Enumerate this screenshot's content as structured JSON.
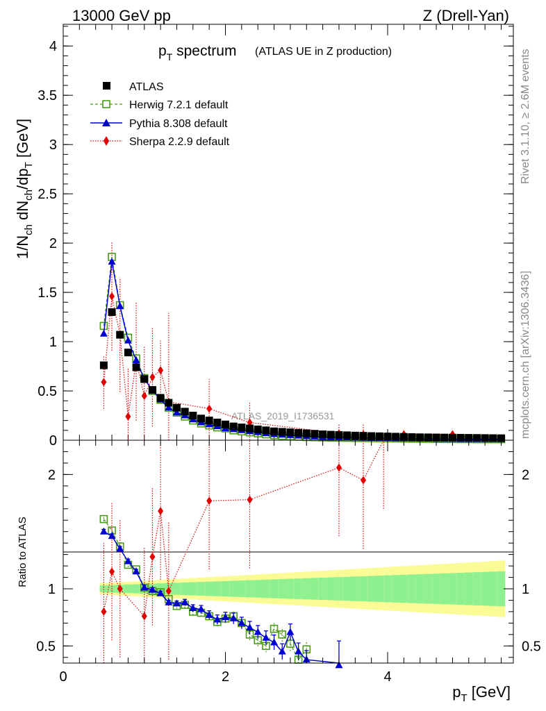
{
  "header": {
    "left": "13000 GeV pp",
    "right": "Z (Drell-Yan)"
  },
  "side_labels": {
    "rivet": "Rivet 3.1.10, ≥ 2.6M events",
    "mcplots": "mcplots.cern.ch [arXiv:1306.3436]"
  },
  "chart_data": [
    {
      "type": "scatter",
      "title_main": "p",
      "title_sub": "T",
      "title_rest": " spectrum",
      "title_extra": "(ATLAS UE in Z production)",
      "watermark": "ATLAS_2019_I1736531",
      "xlabel": "p",
      "xlabel_sub": "T",
      "xlabel_unit": " [GeV]",
      "ylabel": "1/N_ch dN_ch/dp_T [GeV]",
      "xlim": [
        0,
        5.55
      ],
      "ylim": [
        0,
        4.22
      ],
      "yticks": [
        "0",
        "0.5",
        "1",
        "1.5",
        "2",
        "2.5",
        "3",
        "3.5",
        "4"
      ],
      "xticks": [
        "0",
        "2",
        "4"
      ],
      "legend": {
        "position": "top-left",
        "entries": [
          "ATLAS",
          "Herwig 7.2.1 default",
          "Pythia 8.308 default",
          "Sherpa 2.2.9 default"
        ]
      },
      "series": [
        {
          "name": "ATLAS",
          "color": "#000000",
          "marker": "filled-square",
          "x": [
            0.5,
            0.6,
            0.7,
            0.8,
            0.9,
            1.0,
            1.1,
            1.2,
            1.3,
            1.4,
            1.5,
            1.6,
            1.7,
            1.8,
            1.9,
            2.0,
            2.1,
            2.2,
            2.3,
            2.4,
            2.5,
            2.6,
            2.7,
            2.8,
            2.9,
            3.0,
            3.1,
            3.2,
            3.3,
            3.4,
            3.5,
            3.6,
            3.7,
            3.8,
            3.9,
            4.0,
            4.1,
            4.2,
            4.3,
            4.4,
            4.5,
            4.6,
            4.7,
            4.8,
            4.9,
            5.0,
            5.1,
            5.2,
            5.3,
            5.4
          ],
          "y": [
            0.76,
            1.3,
            1.07,
            0.89,
            0.74,
            0.62,
            0.51,
            0.43,
            0.38,
            0.33,
            0.29,
            0.25,
            0.22,
            0.2,
            0.18,
            0.16,
            0.14,
            0.13,
            0.12,
            0.11,
            0.1,
            0.09,
            0.085,
            0.08,
            0.075,
            0.07,
            0.065,
            0.06,
            0.056,
            0.053,
            0.05,
            0.047,
            0.045,
            0.042,
            0.04,
            0.038,
            0.036,
            0.034,
            0.032,
            0.03,
            0.029,
            0.028,
            0.027,
            0.026,
            0.025,
            0.024,
            0.023,
            0.022,
            0.021,
            0.02
          ]
        },
        {
          "name": "Herwig 7.2.1 default",
          "color": "#4b9b1a",
          "marker": "open-square",
          "line": "dashed",
          "x": [
            0.5,
            0.6,
            0.7,
            0.8,
            0.9,
            1.0,
            1.1,
            1.2,
            1.3,
            1.4,
            1.5,
            1.6,
            1.7,
            1.8,
            1.9,
            2.0,
            2.1,
            2.2,
            2.3,
            2.4,
            2.5,
            2.6,
            2.7,
            2.8,
            2.9,
            3.0,
            3.1,
            3.2,
            3.3,
            3.4,
            3.5,
            3.6,
            3.7,
            3.8,
            3.9,
            4.0,
            4.1,
            4.2,
            4.3,
            4.4,
            4.5,
            4.6,
            4.7,
            4.8,
            4.9,
            5.0,
            5.1,
            5.2,
            5.3,
            5.4
          ],
          "y": [
            1.16,
            1.86,
            1.37,
            1.04,
            0.83,
            0.63,
            0.5,
            0.41,
            0.33,
            0.28,
            0.24,
            0.2,
            0.17,
            0.15,
            0.13,
            0.12,
            0.1,
            0.09,
            0.08,
            0.07,
            0.06,
            0.05,
            0.045,
            0.04,
            0.036,
            0.032,
            0.03,
            0.028,
            0.026,
            0.025,
            0.024,
            0.023,
            0.022,
            0.021,
            0.02,
            0.019,
            0.018,
            0.017,
            0.016,
            0.015,
            0.014,
            0.013,
            0.012,
            0.012,
            0.011,
            0.011,
            0.01,
            0.01,
            0.01,
            0.01
          ]
        },
        {
          "name": "Pythia 8.308 default",
          "color": "#0000d0",
          "marker": "filled-triangle",
          "line": "solid",
          "x": [
            0.5,
            0.6,
            0.7,
            0.8,
            0.9,
            1.0,
            1.1,
            1.2,
            1.3,
            1.4,
            1.5,
            1.6,
            1.7,
            1.8,
            1.9,
            2.0,
            2.1,
            2.2,
            2.3,
            2.4,
            2.5,
            2.6,
            2.7,
            2.8,
            2.9,
            3.0,
            3.1,
            3.2,
            3.3,
            3.4,
            3.5,
            3.6,
            3.7,
            3.8,
            3.9,
            4.0,
            4.1,
            4.2,
            4.3,
            4.4,
            4.5,
            4.6,
            4.7,
            4.8,
            4.9,
            5.0,
            5.1,
            5.2,
            5.3,
            5.4
          ],
          "y": [
            1.08,
            1.81,
            1.36,
            1.01,
            0.81,
            0.62,
            0.51,
            0.41,
            0.33,
            0.28,
            0.25,
            0.21,
            0.18,
            0.16,
            0.14,
            0.12,
            0.11,
            0.1,
            0.09,
            0.08,
            0.07,
            0.06,
            0.055,
            0.05,
            0.045,
            0.04,
            0.036,
            0.033,
            0.03,
            0.028,
            0.026,
            0.024,
            0.022,
            0.021,
            0.02,
            0.019,
            0.018,
            0.017,
            0.016,
            0.015,
            0.014,
            0.013,
            0.012,
            0.012,
            0.011,
            0.011,
            0.01,
            0.01,
            0.01,
            0.01
          ]
        },
        {
          "name": "Sherpa 2.2.9 default",
          "color": "#e00000",
          "marker": "filled-diamond",
          "line": "dotted",
          "x": [
            0.5,
            0.6,
            0.7,
            0.8,
            0.9,
            1.0,
            1.1,
            1.2,
            1.3,
            1.8,
            2.3,
            3.4,
            3.7,
            4.2,
            4.8
          ],
          "y": [
            0.59,
            1.46,
            1.07,
            0.24,
            0.8,
            0.45,
            0.64,
            0.71,
            0.39,
            0.32,
            0.18,
            0.07,
            0.06,
            0.06,
            0.06
          ],
          "err": [
            0.27,
            0.55,
            0.58,
            0.5,
            0.6,
            0.5,
            0.5,
            0.3,
            0.9,
            0.3,
            0.2,
            0.1,
            0.1,
            0.05,
            0.05
          ]
        }
      ]
    },
    {
      "type": "scatter",
      "ylabel": "Ratio to ATLAS",
      "xlim": [
        0,
        5.55
      ],
      "ylim": [
        0.35,
        2.3
      ],
      "yticks": [
        "0.5",
        "1",
        "2"
      ],
      "band_colors": {
        "inner": "#8ef08e",
        "outer": "#fbfb96"
      },
      "series": [
        {
          "name": "Herwig 7.2.1 default",
          "color": "#4b9b1a",
          "x": [
            0.5,
            0.6,
            0.7,
            0.8,
            0.9,
            1.0,
            1.1,
            1.2,
            1.3,
            1.4,
            1.5,
            1.6,
            1.7,
            1.8,
            1.9,
            2.0,
            2.1,
            2.2,
            2.3,
            2.4,
            2.5,
            2.6,
            2.7,
            2.8,
            2.9,
            3.0
          ],
          "y": [
            1.61,
            1.51,
            1.37,
            1.21,
            1.17,
            1.01,
            0.98,
            0.97,
            0.91,
            0.85,
            0.86,
            0.8,
            0.79,
            0.76,
            0.71,
            0.74,
            0.76,
            0.7,
            0.6,
            0.55,
            0.5,
            0.65,
            0.6,
            0.52,
            0.38,
            0.47
          ]
        },
        {
          "name": "Pythia 8.308 default",
          "color": "#0000d0",
          "x": [
            0.5,
            0.6,
            0.7,
            0.8,
            0.9,
            1.0,
            1.1,
            1.2,
            1.3,
            1.4,
            1.5,
            1.6,
            1.7,
            1.8,
            1.9,
            2.0,
            2.1,
            2.2,
            2.3,
            2.4,
            2.5,
            2.6,
            2.7,
            2.8,
            2.9,
            3.0,
            3.4
          ],
          "y": [
            1.5,
            1.46,
            1.35,
            1.24,
            1.15,
            1.01,
            0.99,
            0.96,
            0.88,
            0.87,
            0.88,
            0.83,
            0.82,
            0.77,
            0.73,
            0.75,
            0.74,
            0.7,
            0.66,
            0.62,
            0.57,
            0.53,
            0.45,
            0.62,
            0.45,
            0.38,
            0.33
          ]
        },
        {
          "name": "Sherpa 2.2.9 default",
          "color": "#e00000",
          "x": [
            0.5,
            0.6,
            0.7,
            1.0,
            1.1,
            1.2,
            1.3,
            1.8,
            2.3,
            3.4,
            3.7,
            3.95
          ],
          "y": [
            0.8,
            1.15,
            1.0,
            0.76,
            1.28,
            1.68,
            0.98,
            1.77,
            1.78,
            2.06,
            1.95,
            2.3
          ]
        }
      ]
    }
  ]
}
